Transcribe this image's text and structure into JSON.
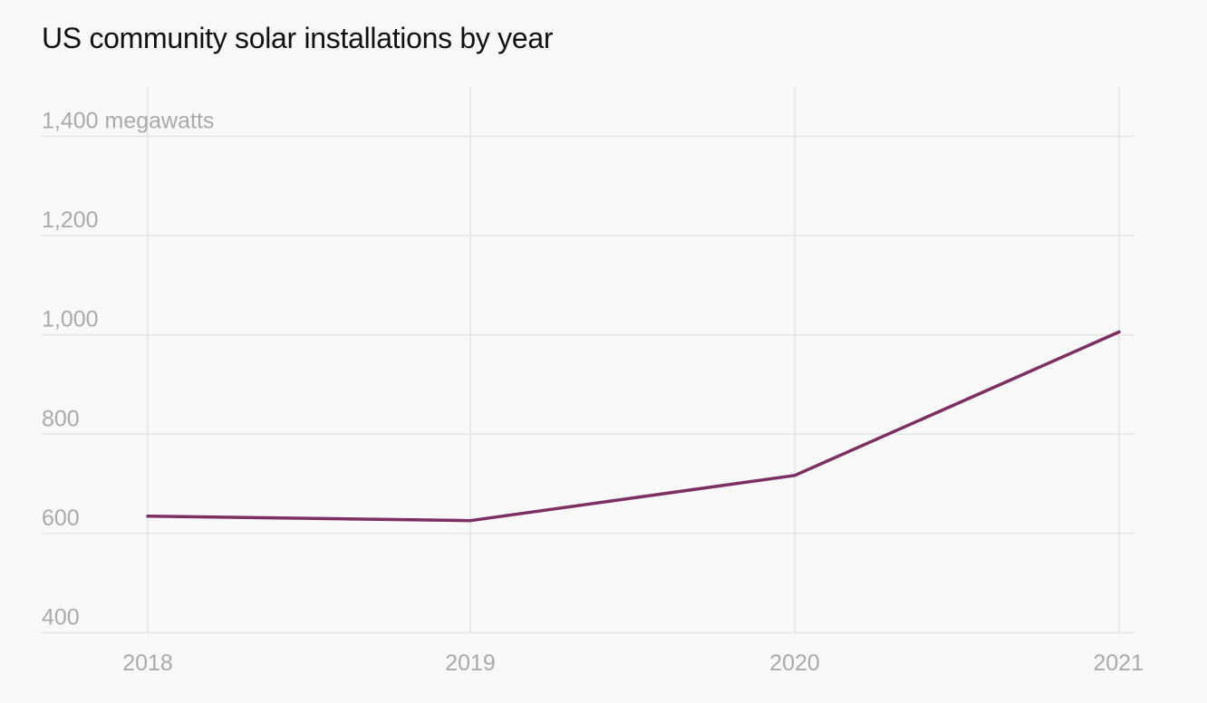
{
  "chart_data": {
    "type": "line",
    "title": "US community solar installations by year",
    "y_unit_label": "megawatts",
    "x": [
      "2018",
      "2019",
      "2020",
      "2021"
    ],
    "series": [
      {
        "values": [
          635,
          626,
          717,
          1006
        ]
      }
    ],
    "y_ticks": [
      400,
      600,
      800,
      1000,
      1200,
      1400
    ],
    "y_tick_labels": [
      "400",
      "600",
      "800",
      "1,000",
      "1,200",
      "1,400 megawatts"
    ],
    "ylim": [
      400,
      1500
    ],
    "grid": true,
    "colors": {
      "line": "#7d2f62",
      "grid": "#e4e4e4",
      "tick_text": "#aaaaaa",
      "title": "#111111",
      "background": "#f8f8f8"
    }
  }
}
